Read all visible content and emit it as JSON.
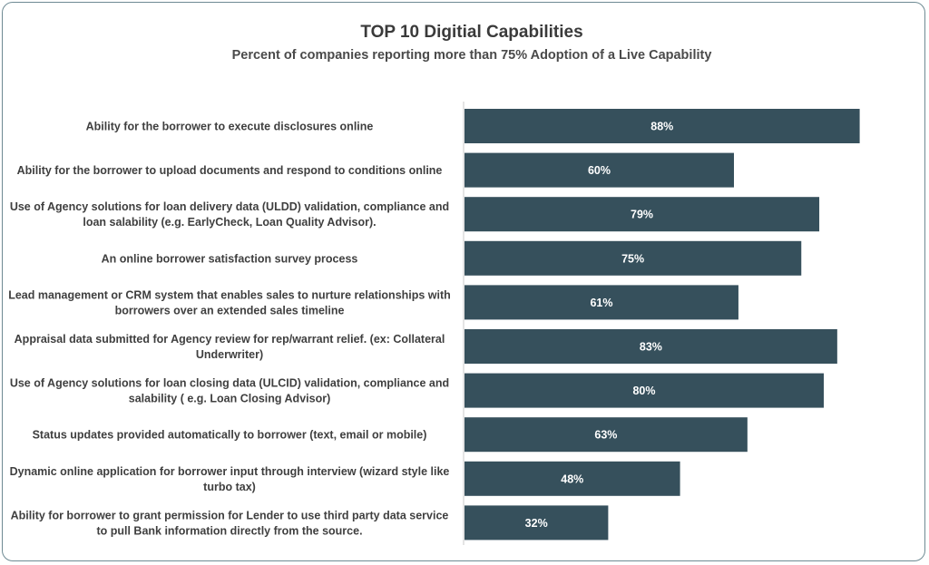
{
  "chart_data": {
    "type": "bar",
    "orientation": "horizontal",
    "title": "TOP 10 Digitial Capabilities",
    "subtitle": "Percent of companies reporting more than 75% Adoption of a Live Capability",
    "categories": [
      [
        "Ability for the borrower to execute disclosures online"
      ],
      [
        "Ability for the borrower to upload documents and respond to conditions online"
      ],
      [
        "Use of Agency solutions for loan delivery data (ULDD) validation, compliance and",
        "loan salability (e.g. EarlyCheck, Loan Quality Advisor)."
      ],
      [
        "An online borrower satisfaction survey process"
      ],
      [
        "Lead management or CRM system that enables sales to nurture relationships with",
        "borrowers over an extended sales timeline"
      ],
      [
        "Appraisal data submitted for Agency review for rep/warrant relief. (ex:  Collateral",
        "Underwriter)"
      ],
      [
        "Use of Agency solutions for loan closing data (ULCID) validation, compliance and",
        "salability ( e.g. Loan Closing Advisor)"
      ],
      [
        "Status updates provided automatically to borrower (text, email or mobile)"
      ],
      [
        "Dynamic online application for borrower input through interview (wizard style like",
        "turbo tax)"
      ],
      [
        "Ability for borrower to grant permission for Lender to use third party data service",
        "to pull Bank information directly from the source."
      ]
    ],
    "values": [
      88,
      60,
      79,
      75,
      61,
      83,
      80,
      63,
      48,
      32
    ],
    "value_labels": [
      "88%",
      "60%",
      "79%",
      "75%",
      "61%",
      "83%",
      "80%",
      "63%",
      "48%",
      "32%"
    ],
    "xlim": [
      0,
      100
    ],
    "bar_color": "#36505c",
    "grid": false,
    "legend": "none"
  }
}
